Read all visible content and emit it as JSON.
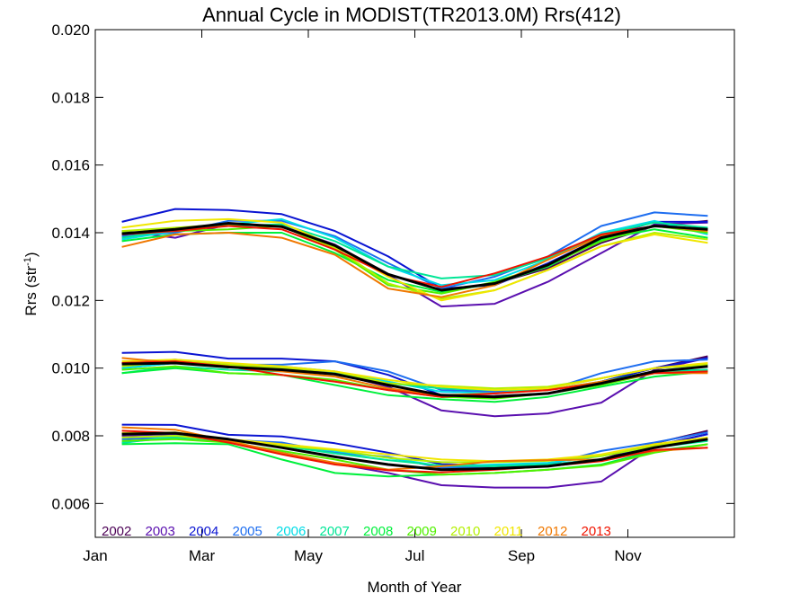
{
  "chart_data": {
    "type": "line",
    "title": "Annual Cycle in MODIST(TR2013.0M) Rrs(412)",
    "xlabel": "Month of Year",
    "ylabel": "Rrs (str",
    "ylabel_sup": "-1",
    "ylabel_close": ")",
    "xlim": [
      0,
      12
    ],
    "ylim": [
      0.005,
      0.02
    ],
    "x_ticks": [
      {
        "value": 0,
        "label": "Jan"
      },
      {
        "value": 2,
        "label": "Mar"
      },
      {
        "value": 4,
        "label": "May"
      },
      {
        "value": 6,
        "label": "Jul"
      },
      {
        "value": 8,
        "label": "Sep"
      },
      {
        "value": 10,
        "label": "Nov"
      }
    ],
    "y_ticks": [
      {
        "value": 0.006,
        "label": "0.006"
      },
      {
        "value": 0.008,
        "label": "0.008"
      },
      {
        "value": 0.01,
        "label": "0.010"
      },
      {
        "value": 0.012,
        "label": "0.012"
      },
      {
        "value": 0.014,
        "label": "0.014"
      },
      {
        "value": 0.016,
        "label": "0.016"
      },
      {
        "value": 0.018,
        "label": "0.018"
      },
      {
        "value": 0.02,
        "label": "0.020"
      }
    ],
    "x": [
      0.5,
      1.5,
      2.5,
      3.5,
      4.5,
      5.5,
      6.5,
      7.5,
      8.5,
      9.5,
      10.5,
      11.5
    ],
    "legend_position": "bottom-left",
    "series": [
      {
        "name": "2002",
        "color": "#4B0055",
        "upper": [
          null,
          null,
          null,
          null,
          null,
          null,
          0.0123,
          0.0125,
          0.01295,
          0.0137,
          0.0142,
          0.01435
        ],
        "middle": [
          null,
          null,
          null,
          null,
          null,
          null,
          0.00915,
          0.00918,
          0.00925,
          0.0096,
          0.01,
          0.01035
        ],
        "lower": [
          null,
          null,
          null,
          null,
          null,
          null,
          0.007,
          0.00705,
          0.0071,
          0.0073,
          0.00778,
          0.00815
        ]
      },
      {
        "name": "2003",
        "color": "#5A0FAF",
        "upper": [
          0.01405,
          0.01385,
          0.01425,
          0.0142,
          0.01365,
          0.01275,
          0.01182,
          0.0119,
          0.01255,
          0.0134,
          0.01425,
          0.0143
        ],
        "middle": [
          0.01015,
          0.01025,
          0.0101,
          0.01,
          0.00985,
          0.00945,
          0.00875,
          0.00858,
          0.00866,
          0.00898,
          0.00995,
          0.0103
        ],
        "lower": [
          0.008,
          0.00805,
          0.0078,
          0.0075,
          0.00718,
          0.0069,
          0.00654,
          0.00647,
          0.00647,
          0.00665,
          0.0077,
          0.00805
        ]
      },
      {
        "name": "2004",
        "color": "#0A14D2",
        "upper": [
          0.01432,
          0.0147,
          0.01467,
          0.01455,
          0.01405,
          0.0133,
          0.01235,
          0.01245,
          0.0131,
          0.01385,
          0.01432,
          0.01432
        ],
        "middle": [
          0.01045,
          0.01048,
          0.01028,
          0.01028,
          0.0102,
          0.0098,
          0.0092,
          0.00915,
          0.00925,
          0.0096,
          0.01,
          0.0103
        ],
        "lower": [
          0.00833,
          0.00832,
          0.00803,
          0.00798,
          0.00778,
          0.0075,
          0.00716,
          0.00712,
          0.00715,
          0.0073,
          0.0077,
          0.00805
        ]
      },
      {
        "name": "2005",
        "color": "#1E6EF0",
        "upper": [
          0.0139,
          0.014,
          0.01435,
          0.01435,
          0.0139,
          0.0131,
          0.01235,
          0.0127,
          0.0133,
          0.0142,
          0.0146,
          0.0145
        ],
        "middle": [
          0.01,
          0.01015,
          0.0101,
          0.0101,
          0.0102,
          0.0099,
          0.00935,
          0.0093,
          0.00935,
          0.00985,
          0.0102,
          0.01025
        ],
        "lower": [
          0.0079,
          0.00795,
          0.00788,
          0.0078,
          0.0075,
          0.00738,
          0.00705,
          0.0071,
          0.00715,
          0.00755,
          0.0078,
          0.0081
        ]
      },
      {
        "name": "2006",
        "color": "#00DCE6",
        "upper": [
          0.0138,
          0.01405,
          0.01425,
          0.0144,
          0.01385,
          0.013,
          0.01245,
          0.0126,
          0.0132,
          0.014,
          0.01435,
          0.01395
        ],
        "middle": [
          0.01,
          0.01015,
          0.0101,
          0.01005,
          0.0099,
          0.0096,
          0.0093,
          0.00925,
          0.0094,
          0.0097,
          0.01,
          0.0101
        ],
        "lower": [
          0.00778,
          0.008,
          0.0079,
          0.0077,
          0.00755,
          0.00735,
          0.0071,
          0.00715,
          0.0072,
          0.0074,
          0.0077,
          0.0079
        ]
      },
      {
        "name": "2007",
        "color": "#00E696",
        "upper": [
          0.01385,
          0.0141,
          0.0142,
          0.01425,
          0.01375,
          0.013,
          0.01265,
          0.01275,
          0.01325,
          0.01395,
          0.0143,
          0.01415
        ],
        "middle": [
          0.00985,
          0.01005,
          0.00995,
          0.0099,
          0.00985,
          0.00955,
          0.0094,
          0.00935,
          0.00935,
          0.0096,
          0.0099,
          0.00995
        ],
        "lower": [
          0.0078,
          0.00795,
          0.00785,
          0.0077,
          0.00748,
          0.00728,
          0.00712,
          0.0071,
          0.00715,
          0.0073,
          0.00765,
          0.00785
        ]
      },
      {
        "name": "2008",
        "color": "#00F03C",
        "upper": [
          0.01375,
          0.01395,
          0.014,
          0.014,
          0.0134,
          0.0126,
          0.01225,
          0.0125,
          0.013,
          0.0138,
          0.0141,
          0.01385
        ],
        "middle": [
          0.00985,
          0.01,
          0.00985,
          0.0098,
          0.0095,
          0.0092,
          0.00908,
          0.009,
          0.00915,
          0.00945,
          0.00975,
          0.0099
        ],
        "lower": [
          0.00775,
          0.00778,
          0.00775,
          0.0073,
          0.0069,
          0.0068,
          0.00685,
          0.0069,
          0.007,
          0.00715,
          0.00755,
          0.00775
        ]
      },
      {
        "name": "2009",
        "color": "#50F000",
        "upper": [
          0.014,
          0.01405,
          0.0141,
          0.0142,
          0.0135,
          0.01245,
          0.0122,
          0.01255,
          0.01305,
          0.01375,
          0.0142,
          0.014
        ],
        "middle": [
          0.00995,
          0.01005,
          0.00985,
          0.0098,
          0.00965,
          0.00935,
          0.00915,
          0.0091,
          0.00925,
          0.0095,
          0.00985,
          0.0099
        ],
        "lower": [
          0.00785,
          0.0079,
          0.0078,
          0.00755,
          0.0073,
          0.007,
          0.00685,
          0.0069,
          0.007,
          0.00712,
          0.0075,
          0.00775
        ]
      },
      {
        "name": "2010",
        "color": "#B4F000",
        "upper": [
          0.01405,
          0.01415,
          0.01425,
          0.0142,
          0.01355,
          0.0125,
          0.01205,
          0.0123,
          0.0129,
          0.0136,
          0.014,
          0.0138
        ],
        "middle": [
          0.01005,
          0.0102,
          0.0101,
          0.01,
          0.0099,
          0.00955,
          0.00948,
          0.0094,
          0.00945,
          0.0097,
          0.01,
          0.0101
        ],
        "lower": [
          0.00795,
          0.008,
          0.00785,
          0.0077,
          0.00758,
          0.00735,
          0.00722,
          0.00722,
          0.00726,
          0.0074,
          0.0077,
          0.0079
        ]
      },
      {
        "name": "2011",
        "color": "#F0E600",
        "upper": [
          0.01415,
          0.01435,
          0.0144,
          0.0143,
          0.0136,
          0.0127,
          0.012,
          0.0123,
          0.0129,
          0.0136,
          0.01395,
          0.0137
        ],
        "middle": [
          0.0102,
          0.01025,
          0.01015,
          0.01005,
          0.0099,
          0.00965,
          0.00945,
          0.00935,
          0.0094,
          0.0097,
          0.01,
          0.01015
        ],
        "lower": [
          0.00808,
          0.0081,
          0.0079,
          0.00775,
          0.0076,
          0.00745,
          0.0073,
          0.00725,
          0.0073,
          0.00745,
          0.00775,
          0.00795
        ]
      },
      {
        "name": "2012",
        "color": "#F07800",
        "upper": [
          0.01358,
          0.01395,
          0.014,
          0.01385,
          0.01335,
          0.01235,
          0.0121,
          0.01245,
          0.0132,
          0.0139,
          0.0142,
          0.01405
        ],
        "middle": [
          0.0103,
          0.01015,
          0.01005,
          0.0099,
          0.00975,
          0.0094,
          0.0092,
          0.00925,
          0.00935,
          0.0096,
          0.00985,
          0.00985
        ],
        "lower": [
          0.00825,
          0.00818,
          0.00785,
          0.0075,
          0.0072,
          0.007,
          0.0071,
          0.00725,
          0.00728,
          0.0073,
          0.00755,
          0.00765
        ]
      },
      {
        "name": "2013",
        "color": "#F01400",
        "upper": [
          0.01395,
          0.01405,
          0.0142,
          0.0141,
          0.0135,
          0.01275,
          0.0124,
          0.0128,
          0.0133,
          0.01395,
          0.0142,
          0.0141
        ],
        "middle": [
          0.01015,
          0.0102,
          0.01005,
          0.0098,
          0.0096,
          0.00935,
          0.00915,
          0.00925,
          0.00935,
          0.00955,
          0.00985,
          0.0099
        ],
        "lower": [
          0.00815,
          0.00808,
          0.0078,
          0.00745,
          0.00715,
          0.00698,
          0.00692,
          0.007,
          0.0071,
          0.00725,
          0.00758,
          0.00765
        ]
      }
    ],
    "mean_series": {
      "color": "#000000",
      "upper": [
        0.01397,
        0.0141,
        0.01428,
        0.01418,
        0.01362,
        0.01277,
        0.0123,
        0.0125,
        0.01305,
        0.01385,
        0.0142,
        0.0141
      ],
      "middle": [
        0.01012,
        0.01015,
        0.01003,
        0.00995,
        0.00982,
        0.0095,
        0.0092,
        0.00915,
        0.00925,
        0.00955,
        0.0099,
        0.01005
      ],
      "lower": [
        0.00805,
        0.00808,
        0.0079,
        0.00765,
        0.00738,
        0.00715,
        0.007,
        0.00703,
        0.0071,
        0.0073,
        0.00765,
        0.0079
      ]
    }
  }
}
